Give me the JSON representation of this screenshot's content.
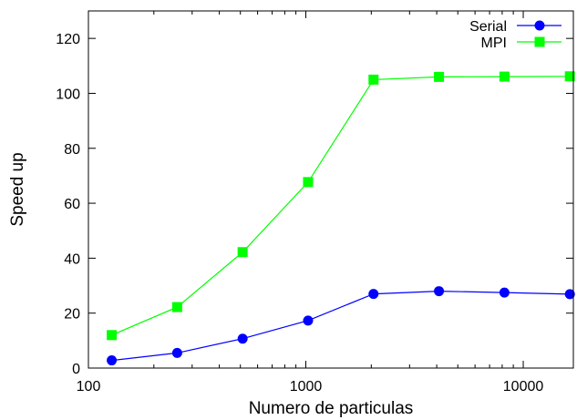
{
  "chart_data": {
    "type": "line",
    "title": "",
    "xlabel": "Numero de particulas",
    "ylabel": "Speed up",
    "xscale": "log",
    "xlim": [
      100,
      17000
    ],
    "ylim": [
      0,
      130
    ],
    "xticks": [
      100,
      1000,
      10000
    ],
    "xtick_labels": [
      "100",
      "1000",
      "10000"
    ],
    "yticks": [
      0,
      20,
      40,
      60,
      80,
      100,
      120
    ],
    "ytick_labels": [
      "0",
      "20",
      "40",
      "60",
      "80",
      "100",
      "120"
    ],
    "grid": false,
    "legend_position": "top-right",
    "x": [
      128,
      256,
      512,
      1024,
      2048,
      4096,
      8192,
      16384
    ],
    "series": [
      {
        "name": "Serial",
        "color": "#0000ff",
        "marker": "circle",
        "values": [
          2.8,
          5.5,
          10.7,
          17.3,
          27.0,
          28.0,
          27.5,
          26.9
        ]
      },
      {
        "name": "MPI",
        "color": "#00ff00",
        "marker": "square",
        "values": [
          12.0,
          22.2,
          42.2,
          67.7,
          105.0,
          106.0,
          106.1,
          106.2
        ]
      }
    ]
  }
}
